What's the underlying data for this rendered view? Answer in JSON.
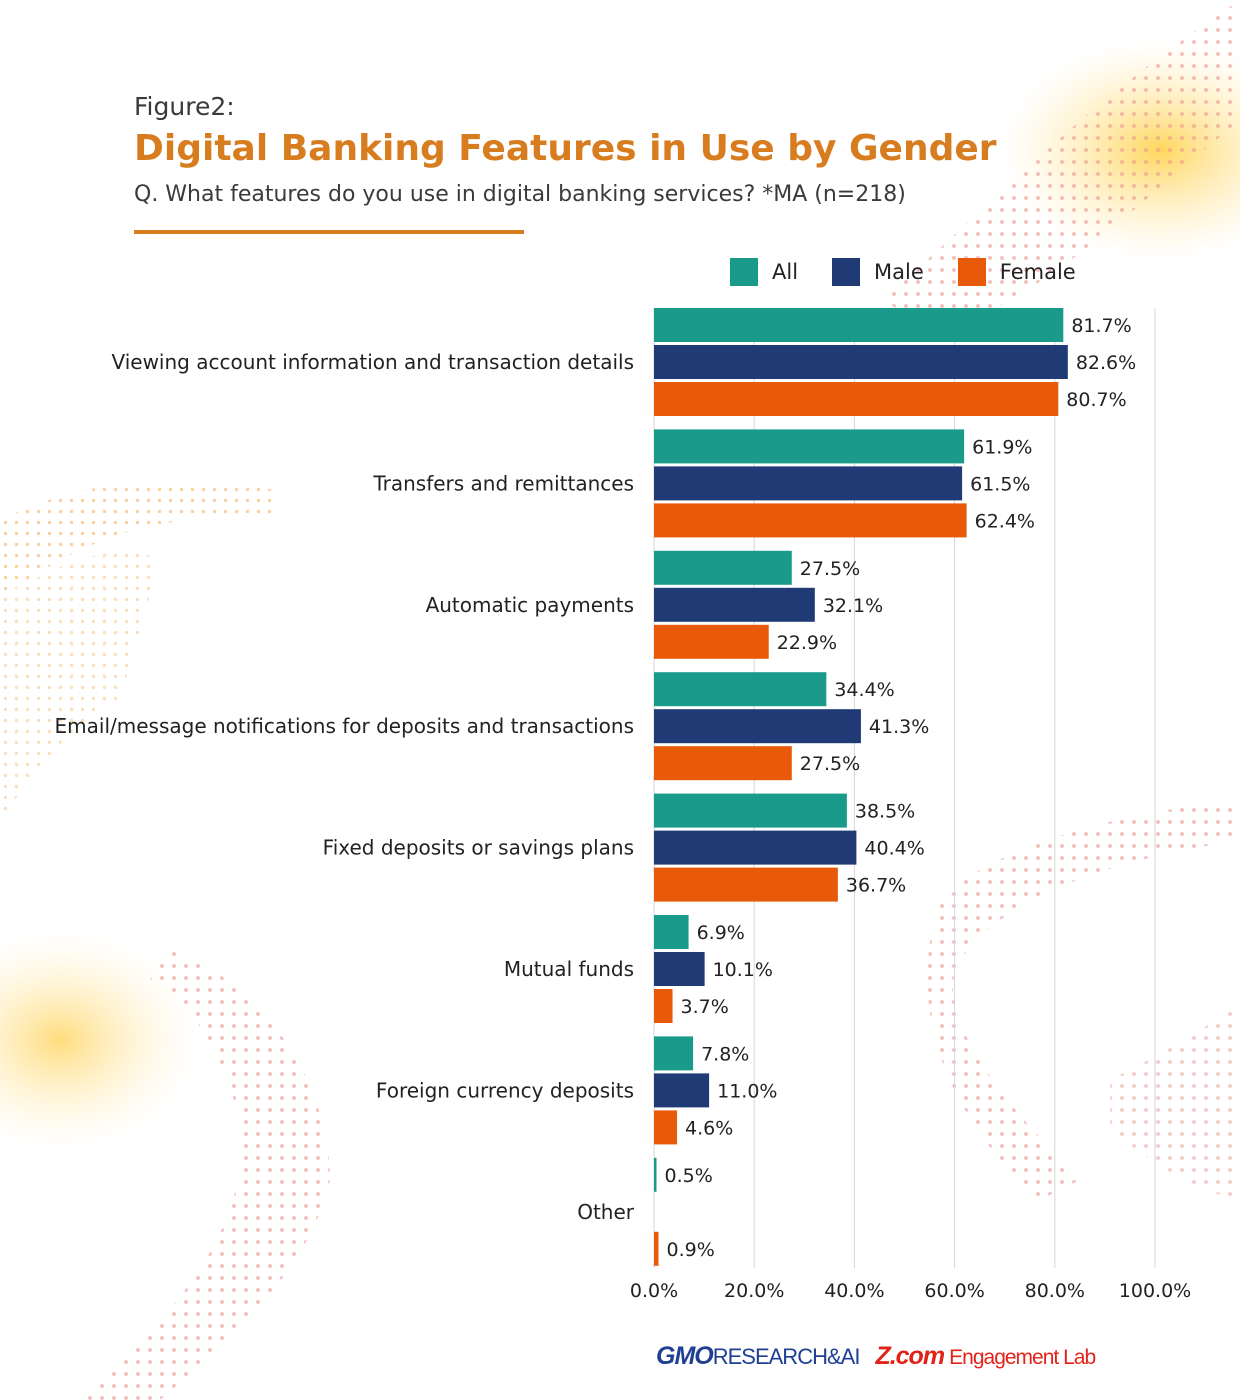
{
  "header": {
    "figure_label": "Figure2:",
    "title": "Digital Banking Features in Use by Gender",
    "subtitle": "Q. What features do you use in digital banking services? *MA (n=218)"
  },
  "colors": {
    "all": "#1a9a8a",
    "male": "#1f3a75",
    "female": "#e85a0a",
    "accent": "#d77d1f",
    "grid": "#d5d5d5"
  },
  "chart_data": {
    "type": "bar",
    "orientation": "horizontal",
    "categories": [
      "Viewing account information and transaction details",
      "Transfers and remittances",
      "Automatic payments",
      "Email/message notifications for deposits and transactions",
      "Fixed deposits or savings plans",
      "Mutual funds",
      "Foreign currency deposits",
      "Other"
    ],
    "series": [
      {
        "name": "All",
        "values": [
          81.7,
          61.9,
          27.5,
          34.4,
          38.5,
          6.9,
          7.8,
          0.5
        ],
        "labels": [
          "81.7%",
          "61.9%",
          "27.5%",
          "34.4%",
          "38.5%",
          "6.9%",
          "7.8%",
          "0.5%"
        ]
      },
      {
        "name": "Male",
        "values": [
          82.6,
          61.5,
          32.1,
          41.3,
          40.4,
          10.1,
          11.0,
          null
        ],
        "labels": [
          "82.6%",
          "61.5%",
          "32.1%",
          "41.3%",
          "40.4%",
          "10.1%",
          "11.0%",
          ""
        ]
      },
      {
        "name": "Female",
        "values": [
          80.7,
          62.4,
          22.9,
          27.5,
          36.7,
          3.7,
          4.6,
          0.9
        ],
        "labels": [
          "80.7%",
          "62.4%",
          "22.9%",
          "27.5%",
          "36.7%",
          "3.7%",
          "4.6%",
          "0.9%"
        ]
      }
    ],
    "xlim": [
      0,
      100
    ],
    "xticks": [
      0,
      20,
      40,
      60,
      80,
      100
    ],
    "xtick_labels": [
      "0.0%",
      "20.0%",
      "40.0%",
      "60.0%",
      "80.0%",
      "100.0%"
    ],
    "grid": "vertical",
    "legend_position": "top-right"
  },
  "footer": {
    "logo_gmo": "GMO",
    "logo_research": "RESEARCH&AI",
    "logo_zcom": "Z.com",
    "logo_lab": "Engagement Lab"
  }
}
